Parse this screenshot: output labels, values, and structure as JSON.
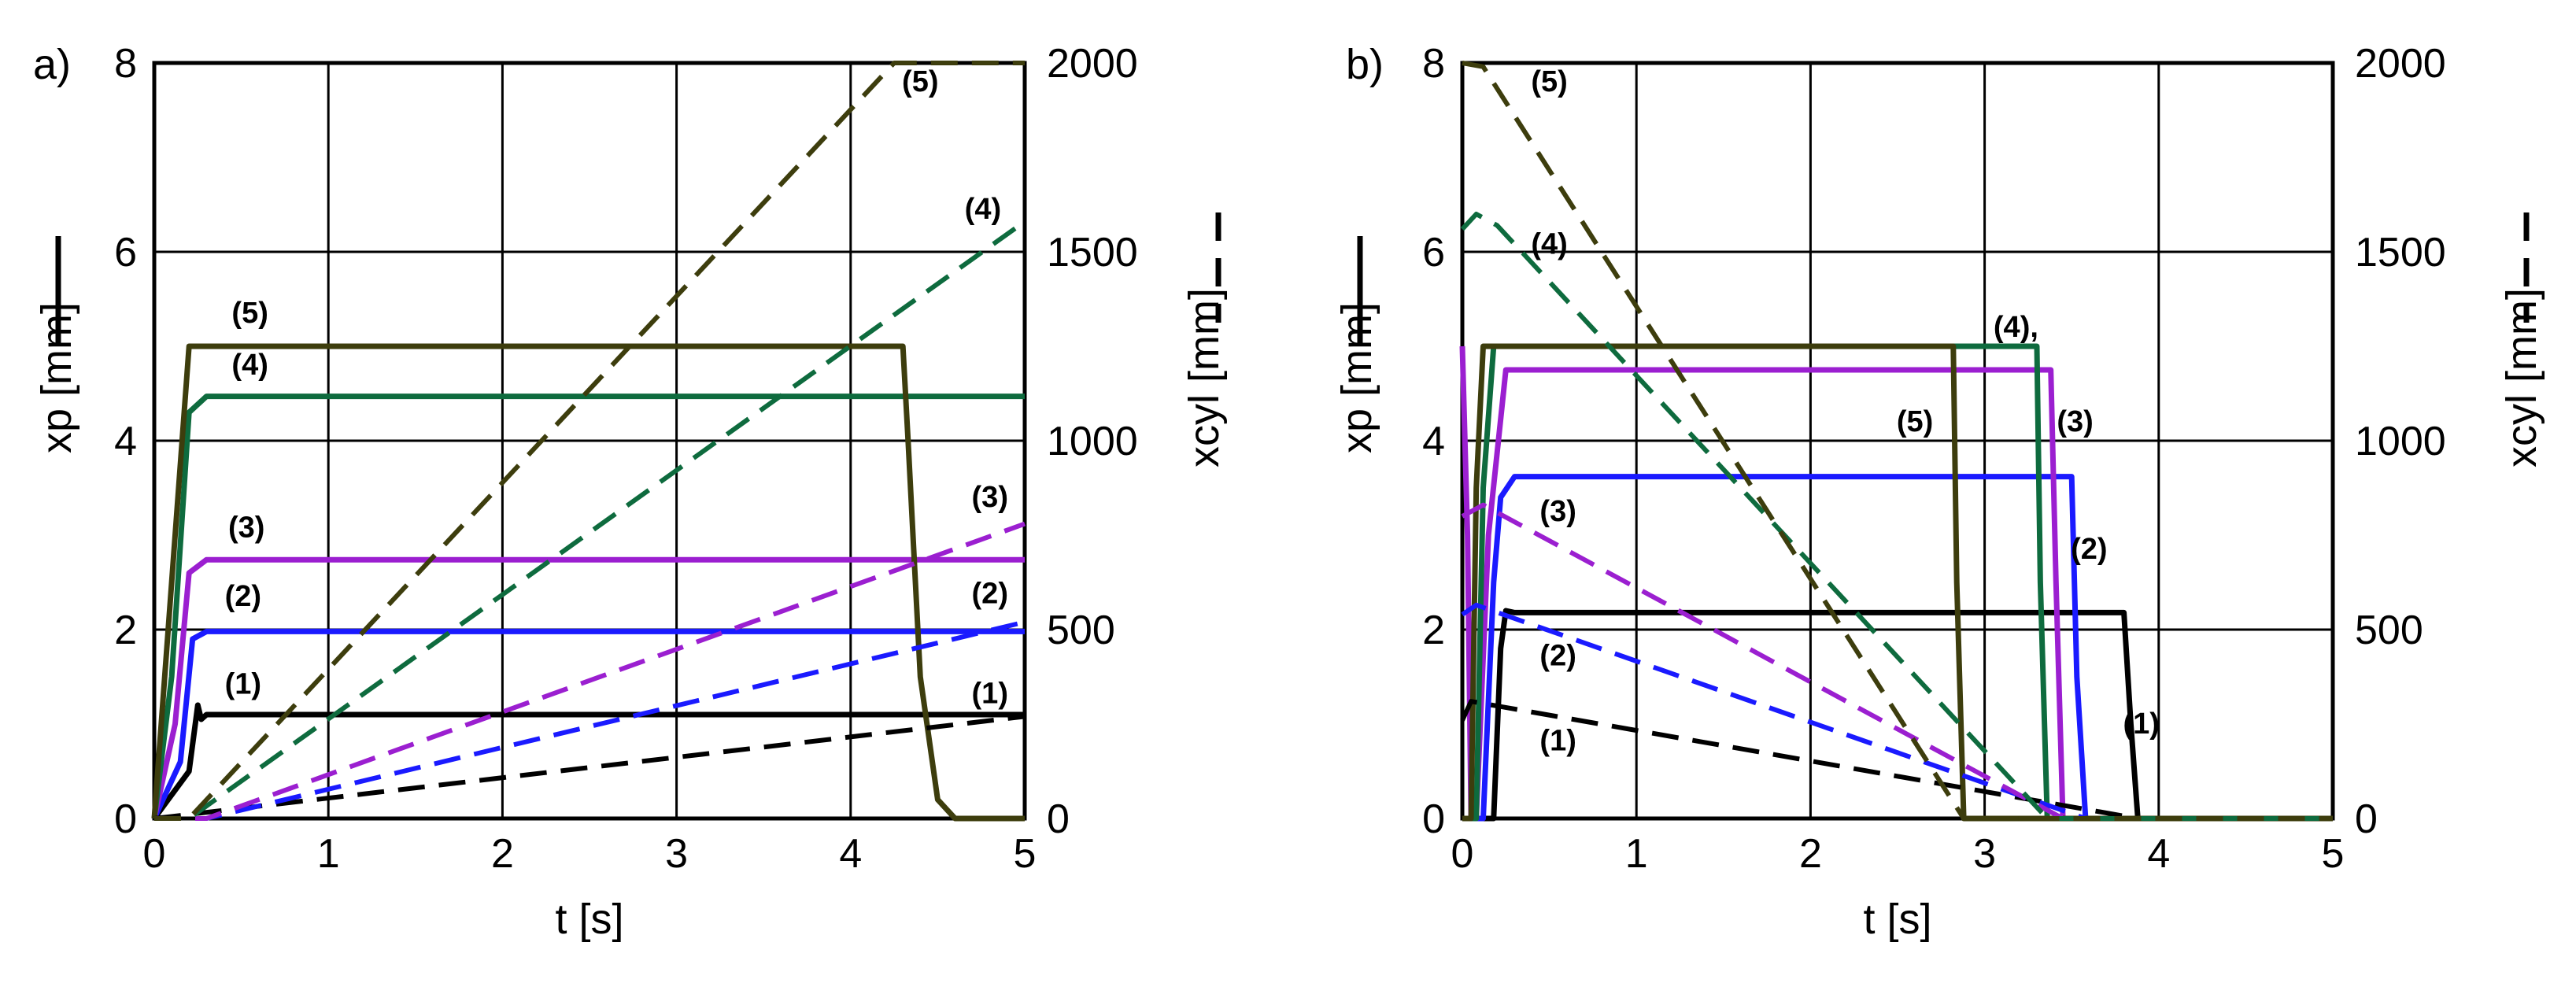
{
  "colors": {
    "s1": "#000000",
    "s2": "#1a1aff",
    "s3": "#9b1fd0",
    "s4": "#0e6b3e",
    "s5": "#3d3d0d"
  },
  "chart_data": [
    {
      "type": "line",
      "panel_label": "a)",
      "xlabel": "t [s]",
      "ylabel_left": "xp [mm]",
      "ylabel_right": "xcyl [mm]",
      "xlim": [
        0,
        5
      ],
      "ylim_left": [
        0,
        8
      ],
      "ylim_right": [
        0,
        2000
      ],
      "x_ticks": [
        "0",
        "1",
        "2",
        "3",
        "4",
        "5"
      ],
      "y_left_ticks": [
        "0",
        "2",
        "4",
        "6",
        "8"
      ],
      "y_right_ticks": [
        "0",
        "500",
        "1000",
        "1500",
        "2000"
      ],
      "grid": true,
      "series": [
        {
          "name": "xp (1)",
          "label": "(1)",
          "color_key": "s1",
          "style": "solid",
          "axis": "left",
          "x": [
            0,
            0.2,
            0.25,
            0.27,
            0.3,
            5
          ],
          "y": [
            0,
            0.5,
            1.2,
            1.05,
            1.1,
            1.1
          ]
        },
        {
          "name": "xp (2)",
          "label": "(2)",
          "color_key": "s2",
          "style": "solid",
          "axis": "left",
          "x": [
            0,
            0.15,
            0.22,
            0.3,
            5
          ],
          "y": [
            0,
            0.6,
            1.9,
            1.98,
            1.98
          ]
        },
        {
          "name": "xp (3)",
          "label": "(3)",
          "color_key": "s3",
          "style": "solid",
          "axis": "left",
          "x": [
            0,
            0.12,
            0.2,
            0.3,
            5
          ],
          "y": [
            0,
            1.0,
            2.6,
            2.74,
            2.74
          ]
        },
        {
          "name": "xp (4)",
          "label": "(4)",
          "color_key": "s4",
          "style": "solid",
          "axis": "left",
          "x": [
            0,
            0.1,
            0.2,
            0.3,
            5
          ],
          "y": [
            0,
            1.5,
            4.3,
            4.47,
            4.47
          ]
        },
        {
          "name": "xp (5)",
          "label": "(5)",
          "color_key": "s5",
          "style": "solid",
          "axis": "left",
          "x": [
            0,
            0.1,
            0.2,
            4.3,
            4.33,
            4.4,
            4.5,
            4.6,
            5
          ],
          "y": [
            0,
            2.5,
            5.0,
            5.0,
            4.0,
            1.5,
            0.2,
            0,
            0
          ]
        },
        {
          "name": "xcyl (1)",
          "label": "(1)",
          "color_key": "s1",
          "style": "dashed",
          "axis": "right",
          "x": [
            0,
            5
          ],
          "y": [
            0,
            270
          ]
        },
        {
          "name": "xcyl (2)",
          "label": "(2)",
          "color_key": "s2",
          "style": "dashed",
          "axis": "right",
          "x": [
            0,
            0.3,
            5
          ],
          "y": [
            0,
            0,
            520
          ]
        },
        {
          "name": "xcyl (3)",
          "label": "(3)",
          "color_key": "s3",
          "style": "dashed",
          "axis": "right",
          "x": [
            0,
            0.3,
            5
          ],
          "y": [
            0,
            0,
            780
          ]
        },
        {
          "name": "xcyl (4)",
          "label": "(4)",
          "color_key": "s4",
          "style": "dashed",
          "axis": "right",
          "x": [
            0,
            0.2,
            5
          ],
          "y": [
            0,
            0,
            1580
          ]
        },
        {
          "name": "xcyl (5)",
          "label": "(5)",
          "color_key": "s5",
          "style": "dashed",
          "axis": "right",
          "x": [
            0,
            0.2,
            4.25,
            5
          ],
          "y": [
            0,
            0,
            2000,
            2000
          ]
        }
      ],
      "annotations": [
        {
          "text": "(5)",
          "x": 0.55,
          "y": 5.25,
          "axis": "left"
        },
        {
          "text": "(4)",
          "x": 0.55,
          "y": 4.7,
          "axis": "left"
        },
        {
          "text": "(3)",
          "x": 0.53,
          "y": 2.98,
          "axis": "left"
        },
        {
          "text": "(2)",
          "x": 0.51,
          "y": 2.25,
          "axis": "left"
        },
        {
          "text": "(1)",
          "x": 0.51,
          "y": 1.32,
          "axis": "left"
        },
        {
          "text": "(5)",
          "x": 4.4,
          "y": 7.7,
          "axis": "left"
        },
        {
          "text": "(4)",
          "x": 4.76,
          "y": 6.35,
          "axis": "left"
        },
        {
          "text": "(3)",
          "x": 4.8,
          "y": 3.3,
          "axis": "left"
        },
        {
          "text": "(2)",
          "x": 4.8,
          "y": 2.28,
          "axis": "left"
        },
        {
          "text": "(1)",
          "x": 4.8,
          "y": 1.22,
          "axis": "left"
        }
      ]
    },
    {
      "type": "line",
      "panel_label": "b)",
      "xlabel": "t [s]",
      "ylabel_left": "xp [mm]",
      "ylabel_right": "xcyl [mm]",
      "xlim": [
        0,
        5
      ],
      "ylim_left": [
        0,
        8
      ],
      "ylim_right": [
        0,
        2000
      ],
      "x_ticks": [
        "0",
        "1",
        "2",
        "3",
        "4",
        "5"
      ],
      "y_left_ticks": [
        "0",
        "2",
        "4",
        "6",
        "8"
      ],
      "y_right_ticks": [
        "0",
        "500",
        "1000",
        "1500",
        "2000"
      ],
      "grid": true,
      "series": [
        {
          "name": "xp (1)",
          "label": "(1)",
          "color_key": "s1",
          "style": "solid",
          "axis": "left",
          "x": [
            0,
            0.18,
            0.22,
            0.25,
            0.3,
            3.8,
            3.84,
            3.88,
            5
          ],
          "y": [
            0,
            0,
            1.8,
            2.2,
            2.18,
            2.18,
            1.0,
            0,
            0
          ]
        },
        {
          "name": "xp (2)",
          "label": "(2)",
          "color_key": "s2",
          "style": "solid",
          "axis": "left",
          "x": [
            0,
            0.12,
            0.18,
            0.22,
            0.3,
            3.5,
            3.53,
            3.58,
            5
          ],
          "y": [
            0,
            0,
            2.5,
            3.4,
            3.62,
            3.62,
            1.5,
            0,
            0
          ]
        },
        {
          "name": "xp (3)",
          "label": "(3)",
          "color_key": "s3",
          "style": "solid",
          "axis": "left",
          "x": [
            0,
            0.03,
            0.05,
            0.08,
            0.15,
            0.25,
            3.38,
            3.41,
            3.45,
            5
          ],
          "y": [
            5.0,
            3.0,
            0,
            0,
            3.0,
            4.75,
            4.75,
            2.5,
            0,
            0
          ]
        },
        {
          "name": "xp (4)",
          "label": "(4)",
          "color_key": "s4",
          "style": "solid",
          "axis": "left",
          "x": [
            0,
            0.08,
            0.12,
            0.18,
            3.3,
            3.32,
            3.36,
            5
          ],
          "y": [
            0,
            0,
            3.5,
            5.0,
            5.0,
            2.5,
            0,
            0
          ]
        },
        {
          "name": "xp (5)",
          "label": "(5)",
          "color_key": "s5",
          "style": "solid",
          "axis": "left",
          "x": [
            0,
            0.05,
            0.08,
            0.12,
            2.82,
            2.84,
            2.88,
            5
          ],
          "y": [
            0,
            0,
            3.5,
            5.0,
            5.0,
            2.5,
            0,
            0
          ]
        },
        {
          "name": "xcyl (1)",
          "label": "(1)",
          "color_key": "s1",
          "style": "dashed",
          "axis": "right",
          "x": [
            0,
            0.05,
            3.88,
            5
          ],
          "y": [
            260,
            310,
            0,
            0
          ]
        },
        {
          "name": "xcyl (2)",
          "label": "(2)",
          "color_key": "s2",
          "style": "dashed",
          "axis": "right",
          "x": [
            0,
            0.08,
            3.58,
            5
          ],
          "y": [
            540,
            565,
            0,
            0
          ]
        },
        {
          "name": "xcyl (3)",
          "label": "(3)",
          "color_key": "s3",
          "style": "dashed",
          "axis": "right",
          "x": [
            0,
            0.12,
            3.45,
            5
          ],
          "y": [
            800,
            830,
            0,
            0
          ]
        },
        {
          "name": "xcyl (4)",
          "label": "(4)",
          "color_key": "s4",
          "style": "dashed",
          "axis": "right",
          "x": [
            0,
            0.08,
            0.2,
            3.36,
            5
          ],
          "y": [
            1560,
            1600,
            1570,
            0,
            0
          ]
        },
        {
          "name": "xcyl (5)",
          "label": "(5)",
          "color_key": "s5",
          "style": "dashed",
          "axis": "right",
          "x": [
            0,
            0.12,
            2.88,
            5
          ],
          "y": [
            2000,
            1990,
            0,
            0
          ]
        }
      ],
      "annotations": [
        {
          "text": "(5)",
          "x": 0.5,
          "y": 7.7,
          "axis": "left"
        },
        {
          "text": "(4)",
          "x": 0.5,
          "y": 5.98,
          "axis": "left"
        },
        {
          "text": "(4),",
          "x": 3.18,
          "y": 5.1,
          "axis": "left"
        },
        {
          "text": "(5)",
          "x": 2.6,
          "y": 4.1,
          "axis": "left"
        },
        {
          "text": "(3)",
          "x": 3.52,
          "y": 4.1,
          "axis": "left"
        },
        {
          "text": "(3)",
          "x": 0.55,
          "y": 3.15,
          "axis": "left"
        },
        {
          "text": "(2)",
          "x": 3.6,
          "y": 2.75,
          "axis": "left"
        },
        {
          "text": "(2)",
          "x": 0.55,
          "y": 1.62,
          "axis": "left"
        },
        {
          "text": "(1)",
          "x": 3.9,
          "y": 0.9,
          "axis": "left"
        },
        {
          "text": "(1)",
          "x": 0.55,
          "y": 0.72,
          "axis": "left"
        }
      ]
    }
  ]
}
